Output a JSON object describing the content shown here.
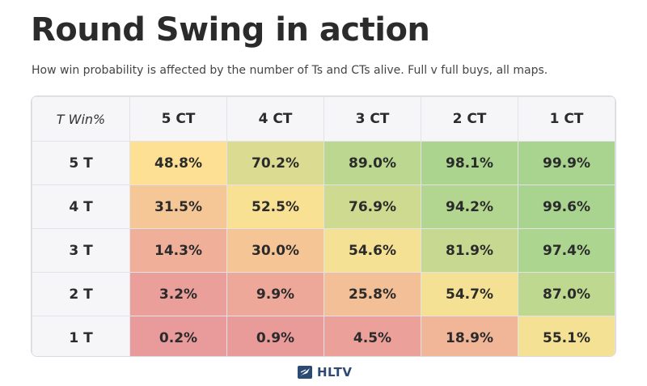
{
  "header": {
    "title": "Round Swing in action",
    "subtitle": "How win probability is affected by the number of Ts and CTs alive. Full v full buys, all maps."
  },
  "brand": {
    "name": "HLTV",
    "logo_icon": "hltv-logo-icon"
  },
  "chart_data": {
    "type": "heatmap",
    "title": "Round Swing in action",
    "subtitle": "How win probability is affected by the number of Ts and CTs alive. Full v full buys, all maps.",
    "corner_label": "T Win%",
    "columns": [
      "5 CT",
      "4 CT",
      "3 CT",
      "2 CT",
      "1 CT"
    ],
    "rows": [
      "5 T",
      "4 T",
      "3 T",
      "2 T",
      "1 T"
    ],
    "values": [
      [
        48.8,
        70.2,
        89.0,
        98.1,
        99.9
      ],
      [
        31.5,
        52.5,
        76.9,
        94.2,
        99.6
      ],
      [
        14.3,
        30.0,
        54.6,
        81.9,
        97.4
      ],
      [
        3.2,
        9.9,
        25.8,
        54.7,
        87.0
      ],
      [
        0.2,
        0.9,
        4.5,
        18.9,
        55.1
      ]
    ],
    "labels": [
      [
        "48.8%",
        "70.2%",
        "89.0%",
        "98.1%",
        "99.9%"
      ],
      [
        "31.5%",
        "52.5%",
        "76.9%",
        "94.2%",
        "99.6%"
      ],
      [
        "14.3%",
        "30.0%",
        "54.6%",
        "81.9%",
        "97.4%"
      ],
      [
        "3.2%",
        "9.9%",
        "25.8%",
        "54.7%",
        "87.0%"
      ],
      [
        "0.2%",
        "0.9%",
        "4.5%",
        "18.9%",
        "55.1%"
      ]
    ],
    "colors": {
      "low": "#e99a9a",
      "mid": "#fde293",
      "high": "#a8d48f"
    }
  }
}
